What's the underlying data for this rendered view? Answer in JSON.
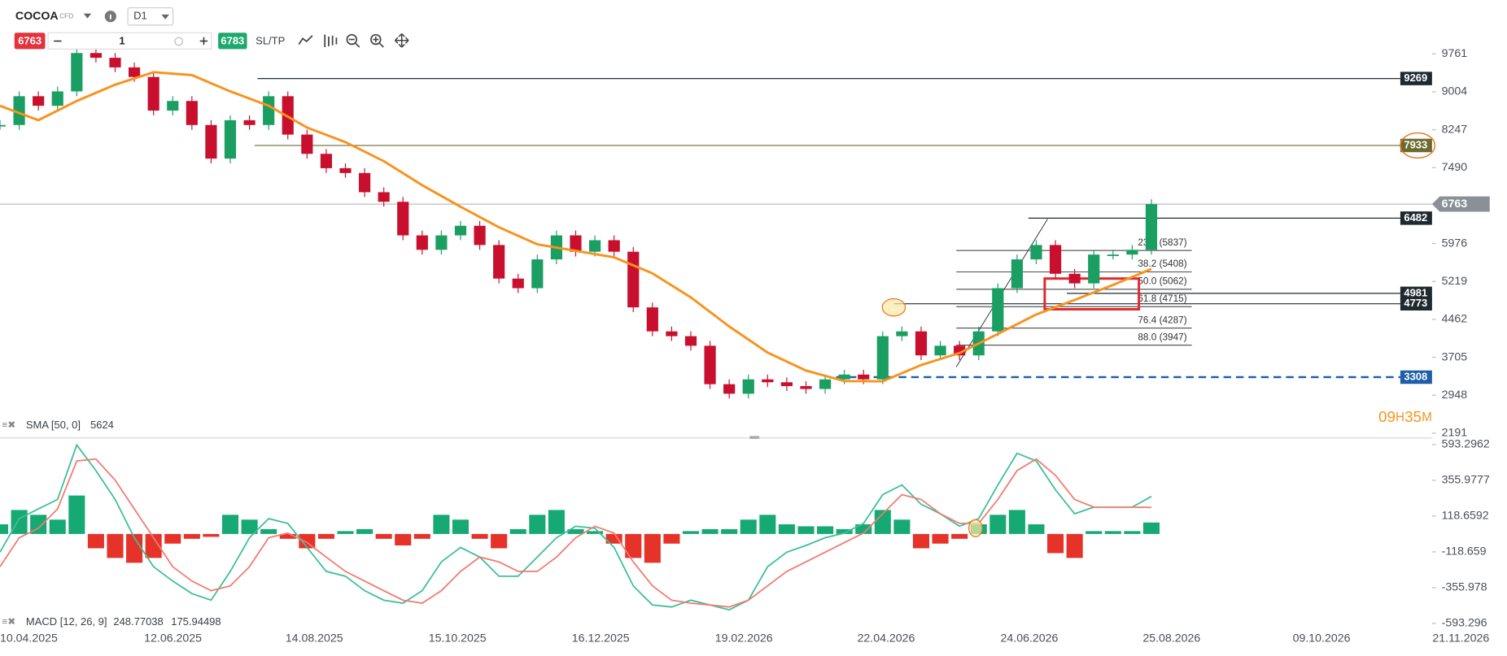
{
  "toolbar": {
    "symbol": "COCOA",
    "symbol_type": "CFD",
    "timeframe": "D1",
    "sell_price": 6763,
    "quantity": 1,
    "buy_price": 6783,
    "sltp": "SL/TP"
  },
  "chart_data": [
    {
      "type": "candlestick",
      "x_ticks": [
        "10.04.2025",
        "12.06.2025",
        "14.08.2025",
        "15.10.2025",
        "16.12.2025",
        "19.02.2026",
        "22.04.2026",
        "24.06.2026",
        "25.08.2026",
        "09.10.2026",
        "21.11.2026"
      ],
      "values": [
        8341,
        8916,
        8725,
        9012,
        9778,
        9683,
        9491,
        9300,
        8629,
        8821,
        8341,
        7671,
        8437,
        8341,
        8916,
        8150,
        7766,
        7479,
        7383,
        7000,
        6809,
        6138,
        5850,
        6138,
        6330,
        5946,
        5276,
        5084,
        5659,
        6138,
        5812,
        6042,
        5812,
        4701,
        4222,
        4126,
        3935,
        3168,
        2977,
        3264,
        3206,
        3130,
        3072,
        3264,
        3360,
        3264,
        4126,
        4222,
        3743,
        3935,
        3743,
        4222,
        5084,
        5659,
        5946,
        5372,
        5180,
        5755,
        5755,
        5850,
        6763
      ],
      "up_color": "#1a9e62",
      "down_color": "#c8102e",
      "sma": {
        "label": "SMA [50, 0]",
        "value": 5624,
        "color": "#f7931e",
        "values": [
          8725,
          8437,
          8821,
          9146,
          9395,
          9338,
          9012,
          8725,
          8290,
          8000,
          7620,
          7140,
          6710,
          6300,
          5960,
          5830,
          5700,
          5380,
          4900,
          4320,
          3800,
          3440,
          3230,
          3226,
          3550,
          3790,
          4170,
          4560,
          4850,
          5150,
          5467
        ]
      },
      "current_price": 6763,
      "current_color": "#8a9096",
      "levels": [
        {
          "value": 9269,
          "color": "#1f2a30"
        },
        {
          "value": 7933,
          "color": "#6b6a2f"
        },
        {
          "value": 6482,
          "color": "#1f2a30"
        },
        {
          "value": 4981,
          "color": "#1f2a30"
        },
        {
          "value": 4773,
          "color": "#1f2a30"
        },
        {
          "value": 3308,
          "color": "#1f5ea8",
          "style": "dashed"
        }
      ],
      "fib": [
        {
          "label": "23.6 (5837)",
          "value": 5837
        },
        {
          "label": "38.2 (5408)",
          "value": 5408
        },
        {
          "label": "50.0 (5062)",
          "value": 5062
        },
        {
          "label": "61.8 (4715)",
          "value": 4715
        },
        {
          "label": "76.4 (4287)",
          "value": 4287
        },
        {
          "label": "88.0 (3947)",
          "value": 3947
        }
      ],
      "countdown": {
        "hours": "09",
        "hours_unit": "H",
        "minutes": "35",
        "minutes_unit": "M"
      },
      "ylim": [
        2191,
        10834
      ],
      "yticks": [
        2191,
        2948,
        3705,
        4462,
        5219,
        5976,
        7490,
        8247,
        9004,
        9761
      ]
    },
    {
      "type": "macd",
      "legend": {
        "label": "MACD [12, 26, 9]",
        "values": [
          248.77038,
          175.94498
        ]
      },
      "histogram": {
        "up_color": "#17a974",
        "down_color": "#e5332a",
        "values": [
          64,
          159,
          127,
          95,
          255,
          -95,
          -159,
          -191,
          -159,
          -64,
          -32,
          -19,
          127,
          95,
          32,
          -32,
          -95,
          -32,
          19,
          32,
          -32,
          -76,
          -32,
          127,
          95,
          -32,
          -95,
          32,
          127,
          159,
          32,
          19,
          -64,
          -159,
          -191,
          -64,
          19,
          32,
          32,
          95,
          127,
          64,
          51,
          51,
          32,
          64,
          159,
          95,
          -95,
          -64,
          -32,
          64,
          127,
          159,
          64,
          -127,
          -159,
          19,
          19,
          19,
          76
        ]
      },
      "series": [
        {
          "color": "#3cbf9a",
          "values": [
            -121,
            102,
            166,
            229,
            590,
            420,
            229,
            -25,
            -217,
            -312,
            -395,
            -439,
            -248,
            -25,
            102,
            70,
            -89,
            -248,
            -280,
            -376,
            -439,
            -459,
            -376,
            -185,
            -89,
            -153,
            -280,
            -280,
            -153,
            -25,
            51,
            38,
            -89,
            -344,
            -471,
            -484,
            -439,
            -471,
            -503,
            -439,
            -217,
            -121,
            -76,
            -25,
            6,
            70,
            261,
            325,
            197,
            134,
            51,
            102,
            325,
            535,
            484,
            293,
            134,
            178,
            178,
            178,
            249
          ]
        },
        {
          "color": "#f07b72",
          "values": [
            -217,
            -25,
            38,
            166,
            484,
            497,
            357,
            166,
            -25,
            -217,
            -312,
            -376,
            -344,
            -217,
            -25,
            6,
            -57,
            -153,
            -248,
            -312,
            -376,
            -439,
            -459,
            -376,
            -248,
            -153,
            -185,
            -248,
            -248,
            -153,
            -25,
            51,
            6,
            -185,
            -344,
            -439,
            -459,
            -471,
            -484,
            -439,
            -344,
            -248,
            -185,
            -121,
            -57,
            6,
            134,
            261,
            229,
            134,
            70,
            70,
            229,
            420,
            497,
            389,
            229,
            178,
            178,
            178,
            176
          ]
        }
      ],
      "ylim": [
        -630,
        624
      ],
      "yticks": [
        -593.296,
        -355.978,
        -118.659,
        118.6592,
        355.9777,
        593.2962
      ]
    }
  ]
}
